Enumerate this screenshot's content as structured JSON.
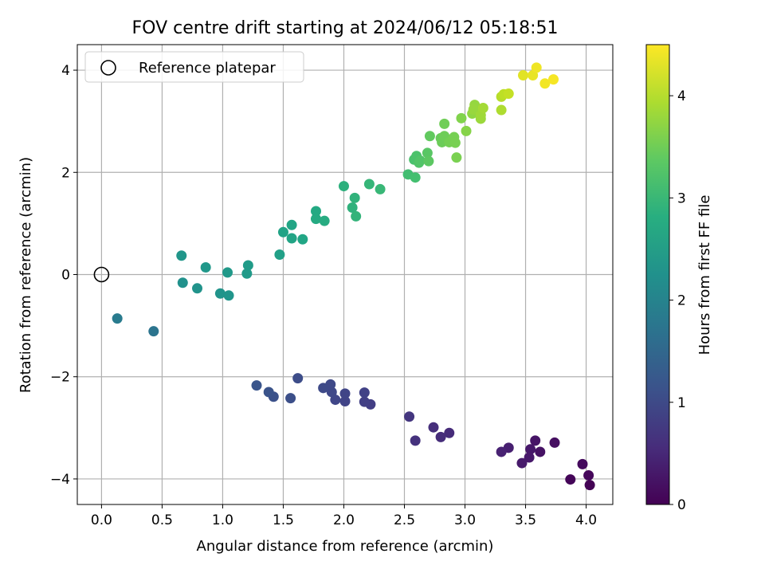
{
  "chart_data": {
    "type": "scatter",
    "title": "FOV centre drift starting at 2024/06/12 05:18:51",
    "xlabel": "Angular distance from reference (arcmin)",
    "ylabel": "Rotation from reference (arcmin)",
    "xlim": [
      -0.2,
      4.22
    ],
    "ylim": [
      -4.5,
      4.5
    ],
    "xticks": [
      0.0,
      0.5,
      1.0,
      1.5,
      2.0,
      2.5,
      3.0,
      3.5,
      4.0
    ],
    "xtick_labels": [
      "0.0",
      "0.5",
      "1.0",
      "1.5",
      "2.0",
      "2.5",
      "3.0",
      "3.5",
      "4.0"
    ],
    "yticks": [
      -4,
      -2,
      0,
      2,
      4
    ],
    "ytick_labels": [
      "−4",
      "−2",
      "0",
      "2",
      "4"
    ],
    "grid": true,
    "legend": {
      "placement": "upper-left",
      "label": "Reference platepar"
    },
    "reference_point": {
      "x": 0.0,
      "y": 0.0
    },
    "colorbar": {
      "label": "Hours from first FF file",
      "colormap": "viridis",
      "range": [
        0,
        4.5
      ],
      "ticks": [
        0,
        1,
        2,
        3,
        4
      ],
      "tick_labels": [
        "0",
        "1",
        "2",
        "3",
        "4"
      ]
    },
    "points": [
      {
        "x": 4.03,
        "y": -4.12,
        "c": 0.02
      },
      {
        "x": 3.87,
        "y": -4.01,
        "c": 0.05
      },
      {
        "x": 4.02,
        "y": -3.93,
        "c": 0.08
      },
      {
        "x": 3.97,
        "y": -3.71,
        "c": 0.12
      },
      {
        "x": 3.74,
        "y": -3.29,
        "c": 0.18
      },
      {
        "x": 3.62,
        "y": -3.47,
        "c": 0.22
      },
      {
        "x": 3.58,
        "y": -3.25,
        "c": 0.25
      },
      {
        "x": 3.54,
        "y": -3.42,
        "c": 0.28
      },
      {
        "x": 3.53,
        "y": -3.58,
        "c": 0.3
      },
      {
        "x": 3.47,
        "y": -3.69,
        "c": 0.32
      },
      {
        "x": 3.36,
        "y": -3.39,
        "c": 0.38
      },
      {
        "x": 3.3,
        "y": -3.47,
        "c": 0.42
      },
      {
        "x": 2.87,
        "y": -3.1,
        "c": 0.55
      },
      {
        "x": 2.8,
        "y": -3.18,
        "c": 0.58
      },
      {
        "x": 2.74,
        "y": -2.99,
        "c": 0.6
      },
      {
        "x": 2.59,
        "y": -3.25,
        "c": 0.65
      },
      {
        "x": 2.54,
        "y": -2.78,
        "c": 0.7
      },
      {
        "x": 2.22,
        "y": -2.54,
        "c": 0.82
      },
      {
        "x": 2.17,
        "y": -2.49,
        "c": 0.85
      },
      {
        "x": 2.17,
        "y": -2.31,
        "c": 0.87
      },
      {
        "x": 2.01,
        "y": -2.48,
        "c": 0.9
      },
      {
        "x": 2.01,
        "y": -2.33,
        "c": 0.92
      },
      {
        "x": 1.93,
        "y": -2.45,
        "c": 0.94
      },
      {
        "x": 1.9,
        "y": -2.3,
        "c": 0.96
      },
      {
        "x": 1.89,
        "y": -2.15,
        "c": 0.98
      },
      {
        "x": 1.83,
        "y": -2.22,
        "c": 1.0
      },
      {
        "x": 1.62,
        "y": -2.03,
        "c": 1.05
      },
      {
        "x": 1.56,
        "y": -2.42,
        "c": 1.08
      },
      {
        "x": 1.42,
        "y": -2.39,
        "c": 1.12
      },
      {
        "x": 1.38,
        "y": -2.3,
        "c": 1.15
      },
      {
        "x": 1.28,
        "y": -2.17,
        "c": 1.18
      },
      {
        "x": 0.43,
        "y": -1.11,
        "c": 1.72
      },
      {
        "x": 0.13,
        "y": -0.86,
        "c": 1.85
      },
      {
        "x": 0.67,
        "y": -0.16,
        "c": 2.25
      },
      {
        "x": 0.79,
        "y": -0.27,
        "c": 2.28
      },
      {
        "x": 0.98,
        "y": -0.37,
        "c": 2.3
      },
      {
        "x": 1.05,
        "y": -0.41,
        "c": 2.32
      },
      {
        "x": 0.66,
        "y": 0.37,
        "c": 2.35
      },
      {
        "x": 0.86,
        "y": 0.14,
        "c": 2.38
      },
      {
        "x": 1.04,
        "y": 0.04,
        "c": 2.4
      },
      {
        "x": 1.2,
        "y": 0.02,
        "c": 2.42
      },
      {
        "x": 1.21,
        "y": 0.18,
        "c": 2.45
      },
      {
        "x": 1.47,
        "y": 0.39,
        "c": 2.55
      },
      {
        "x": 1.5,
        "y": 0.83,
        "c": 2.6
      },
      {
        "x": 1.57,
        "y": 0.71,
        "c": 2.62
      },
      {
        "x": 1.57,
        "y": 0.97,
        "c": 2.64
      },
      {
        "x": 1.66,
        "y": 0.69,
        "c": 2.66
      },
      {
        "x": 1.77,
        "y": 1.24,
        "c": 2.72
      },
      {
        "x": 1.77,
        "y": 1.09,
        "c": 2.74
      },
      {
        "x": 1.84,
        "y": 1.05,
        "c": 2.76
      },
      {
        "x": 2.0,
        "y": 1.73,
        "c": 2.85
      },
      {
        "x": 2.07,
        "y": 1.31,
        "c": 2.88
      },
      {
        "x": 2.09,
        "y": 1.5,
        "c": 2.9
      },
      {
        "x": 2.1,
        "y": 1.14,
        "c": 2.92
      },
      {
        "x": 2.21,
        "y": 1.77,
        "c": 2.96
      },
      {
        "x": 2.3,
        "y": 1.67,
        "c": 3.0
      },
      {
        "x": 2.53,
        "y": 1.96,
        "c": 3.12
      },
      {
        "x": 2.59,
        "y": 1.9,
        "c": 3.15
      },
      {
        "x": 2.58,
        "y": 2.25,
        "c": 3.2
      },
      {
        "x": 2.6,
        "y": 2.32,
        "c": 3.22
      },
      {
        "x": 2.62,
        "y": 2.19,
        "c": 3.25
      },
      {
        "x": 2.63,
        "y": 2.23,
        "c": 3.27
      },
      {
        "x": 2.69,
        "y": 2.38,
        "c": 3.32
      },
      {
        "x": 2.7,
        "y": 2.22,
        "c": 3.35
      },
      {
        "x": 2.71,
        "y": 2.71,
        "c": 3.4
      },
      {
        "x": 2.8,
        "y": 2.67,
        "c": 3.45
      },
      {
        "x": 2.81,
        "y": 2.59,
        "c": 3.48
      },
      {
        "x": 2.83,
        "y": 2.71,
        "c": 3.5
      },
      {
        "x": 2.83,
        "y": 2.95,
        "c": 3.52
      },
      {
        "x": 2.87,
        "y": 2.59,
        "c": 3.55
      },
      {
        "x": 2.91,
        "y": 2.69,
        "c": 3.57
      },
      {
        "x": 2.92,
        "y": 2.58,
        "c": 3.58
      },
      {
        "x": 2.93,
        "y": 2.29,
        "c": 3.6
      },
      {
        "x": 2.97,
        "y": 3.06,
        "c": 3.65
      },
      {
        "x": 3.01,
        "y": 2.81,
        "c": 3.68
      },
      {
        "x": 3.06,
        "y": 3.15,
        "c": 3.75
      },
      {
        "x": 3.08,
        "y": 3.32,
        "c": 3.78
      },
      {
        "x": 3.07,
        "y": 3.23,
        "c": 3.8
      },
      {
        "x": 3.13,
        "y": 3.05,
        "c": 3.82
      },
      {
        "x": 3.13,
        "y": 3.12,
        "c": 3.85
      },
      {
        "x": 3.15,
        "y": 3.26,
        "c": 3.88
      },
      {
        "x": 3.3,
        "y": 3.22,
        "c": 3.95
      },
      {
        "x": 3.3,
        "y": 3.48,
        "c": 4.0
      },
      {
        "x": 3.32,
        "y": 3.53,
        "c": 4.05
      },
      {
        "x": 3.36,
        "y": 3.54,
        "c": 4.1
      },
      {
        "x": 3.48,
        "y": 3.9,
        "c": 4.3
      },
      {
        "x": 3.56,
        "y": 3.9,
        "c": 4.35
      },
      {
        "x": 3.59,
        "y": 4.05,
        "c": 4.4
      },
      {
        "x": 3.66,
        "y": 3.74,
        "c": 4.42
      },
      {
        "x": 3.73,
        "y": 3.82,
        "c": 4.45
      }
    ]
  }
}
